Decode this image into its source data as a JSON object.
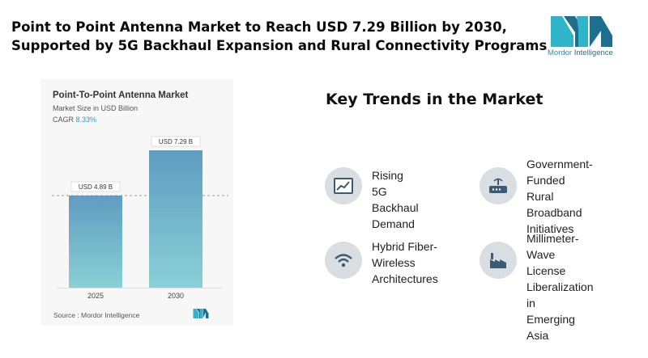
{
  "header": {
    "title_line1": "Point to Point Antenna Market to Reach USD 7.29 Billion by 2030,",
    "title_line2": "Supported by 5G Backhaul Expansion and Rural Connectivity Programs"
  },
  "brand": {
    "name_part1": "Mordor",
    "name_part2": "Intelligence",
    "colors": {
      "teal": "#2fb4c9",
      "dark_teal": "#1e6f8f"
    }
  },
  "chart_card": {
    "title": "Point-To-Point Antenna Market",
    "subtitle": "Market Size in USD Billion",
    "cagr_label": "CAGR",
    "cagr_value": "8.33%",
    "source": "Source : Mordor Intelligence"
  },
  "chart_data": {
    "type": "bar",
    "title": "Point-To-Point Antenna Market",
    "ylabel": "Market Size in USD Billion",
    "categories": [
      "2025",
      "2030"
    ],
    "values": [
      4.89,
      7.29
    ],
    "data_labels": [
      "USD 4.89 B",
      "USD 7.29 B"
    ],
    "ylim": [
      0,
      7.29
    ],
    "grid": false,
    "reference_line": "dashed at 2025 value",
    "colors": {
      "bar_top": "#5f9cc1",
      "bar_bottom": "#8ad0d6"
    }
  },
  "trends": {
    "title": "Key Trends in the Market",
    "items": [
      {
        "label": "Rising 5G\nBackhaul\nDemand",
        "icon": "line-chart-icon"
      },
      {
        "label": "Government-\nFunded Rural\nBroadband\nInitiatives",
        "icon": "router-icon"
      },
      {
        "label": "Hybrid Fiber-\nWireless\nArchitectures",
        "icon": "wifi-icon"
      },
      {
        "label": "Millimeter-Wave\nLicense\nLiberalization in\nEmerging Asia",
        "icon": "factory-icon"
      }
    ]
  }
}
